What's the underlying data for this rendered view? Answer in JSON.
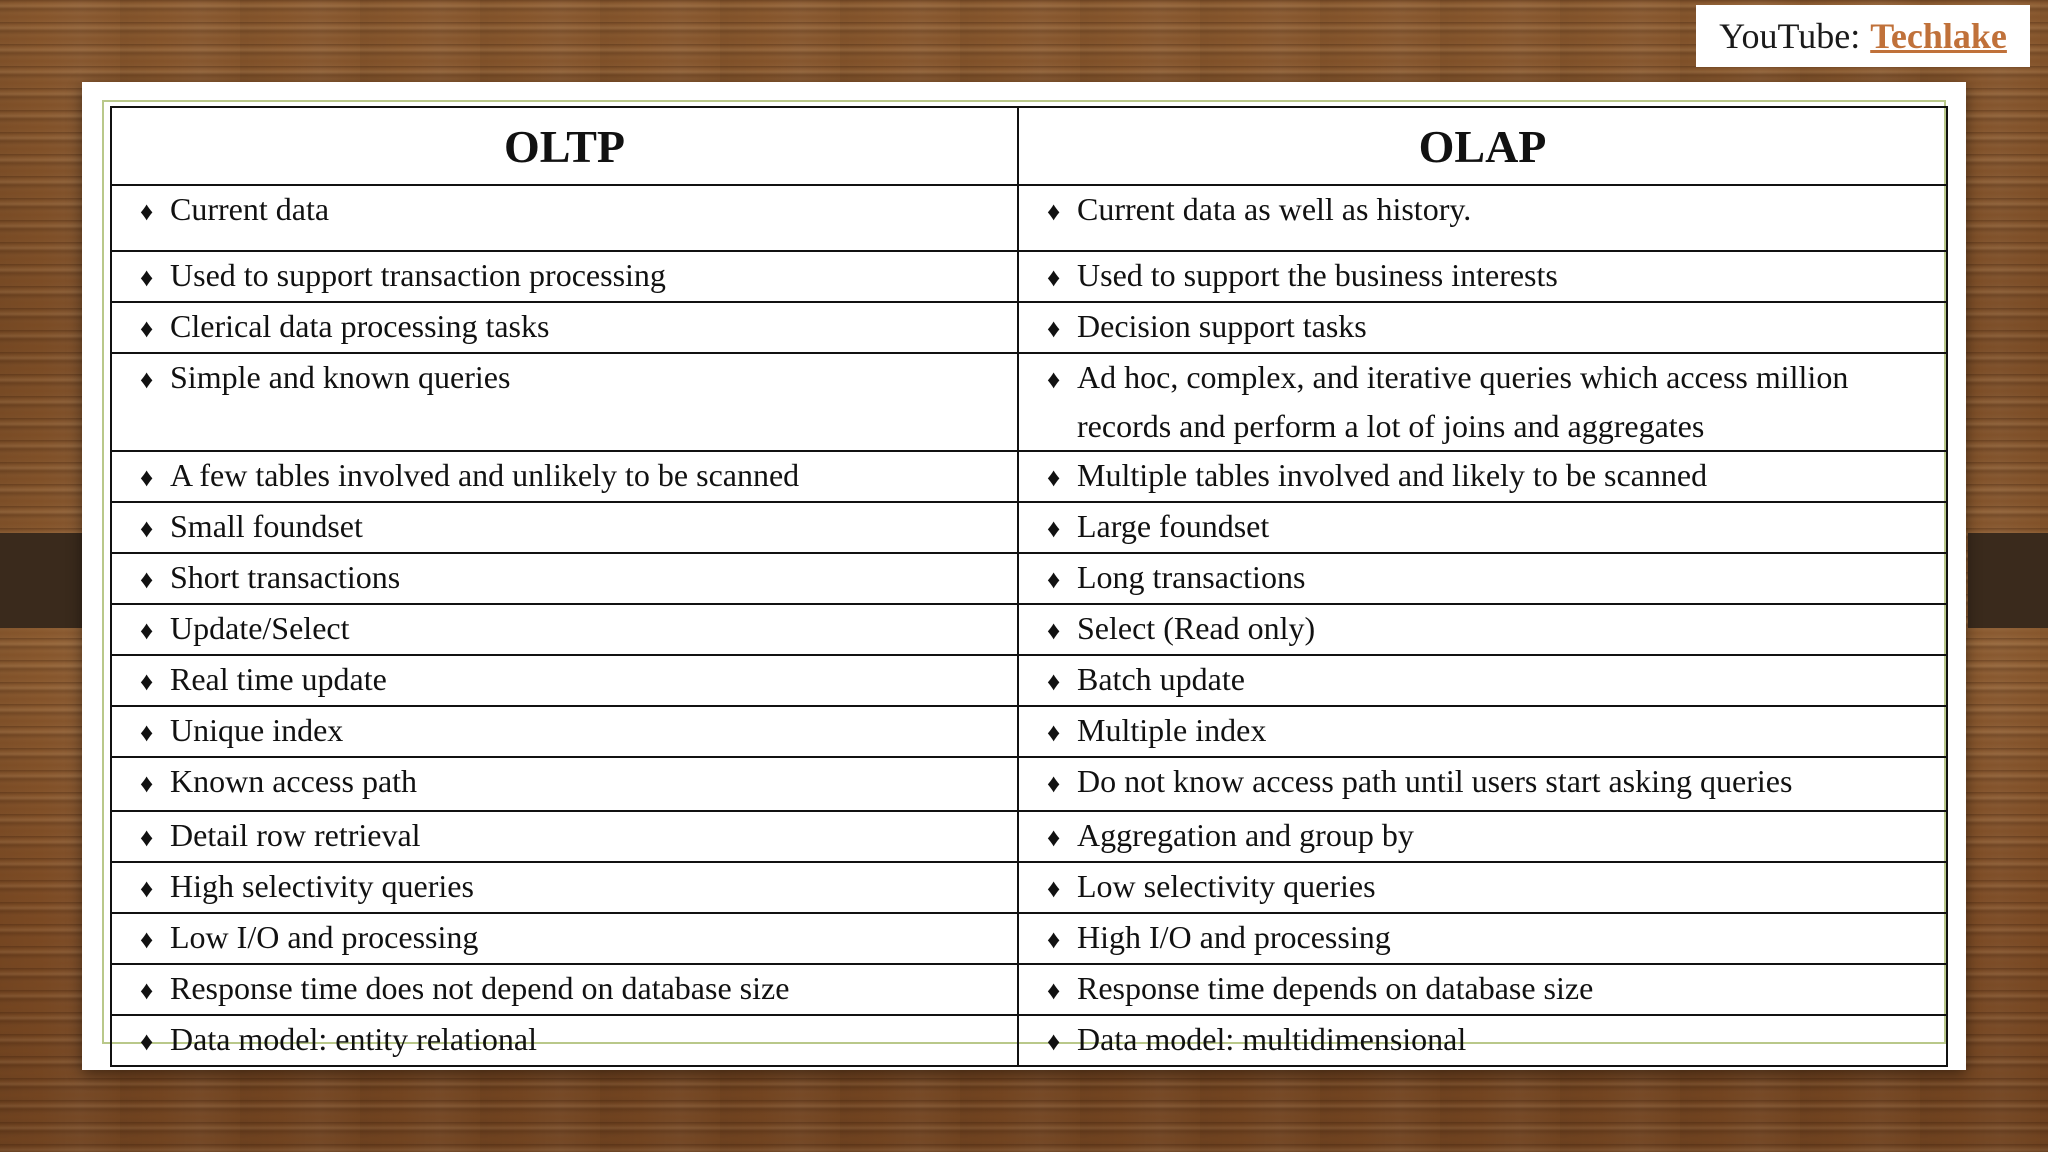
{
  "watermark": {
    "prefix": "YouTube:",
    "brand": "Techlake"
  },
  "table": {
    "headers": [
      "OLTP",
      "OLAP"
    ],
    "bullet": "♦",
    "rows": [
      {
        "oltp": "Current data",
        "olap": "Current data as well as history."
      },
      {
        "oltp": "Used to support transaction processing",
        "olap": "Used to support the business interests"
      },
      {
        "oltp": "Clerical data processing tasks",
        "olap": "Decision support tasks"
      },
      {
        "oltp": "Simple and known queries",
        "olap": "Ad hoc, complex, and iterative queries which access million",
        "olap_cont": "records and perform a lot of joins and aggregates"
      },
      {
        "oltp": "A few tables involved and unlikely to be scanned",
        "olap": "Multiple tables involved and likely to be scanned"
      },
      {
        "oltp": "Small foundset",
        "olap": "Large foundset"
      },
      {
        "oltp": "Short transactions",
        "olap": "Long transactions"
      },
      {
        "oltp": "Update/Select",
        "olap": "Select (Read only)"
      },
      {
        "oltp": "Real time update",
        "olap": "Batch update"
      },
      {
        "oltp": "Unique index",
        "olap": "Multiple index"
      },
      {
        "oltp": "Known access path",
        "olap": "Do not know access path until users start asking queries"
      },
      {
        "oltp": "Detail row retrieval",
        "olap": "Aggregation and group by"
      },
      {
        "oltp": "High selectivity queries",
        "olap": "Low selectivity queries"
      },
      {
        "oltp": "Low I/O and processing",
        "olap": "High I/O and processing"
      },
      {
        "oltp": "Response time does not depend on database size",
        "olap": "Response time depends on database size"
      },
      {
        "oltp": "Data model: entity relational",
        "olap": "Data model: multidimensional"
      }
    ]
  }
}
